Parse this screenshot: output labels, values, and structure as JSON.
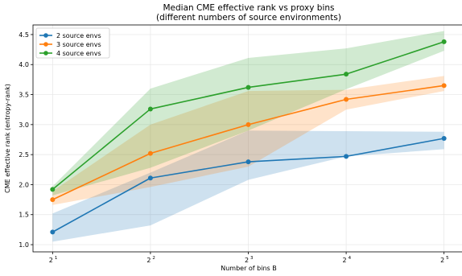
{
  "chart_data": {
    "type": "line",
    "title": "Median CME effective rank vs proxy bins",
    "subtitle": "(different numbers of source environments)",
    "xlabel": "Number of bins B",
    "ylabel": "CME effective rank (entropy-rank)",
    "x": [
      1,
      2,
      3,
      4,
      5
    ],
    "x_tick_labels": [
      {
        "base": "2",
        "exp": "1"
      },
      {
        "base": "2",
        "exp": "2"
      },
      {
        "base": "2",
        "exp": "3"
      },
      {
        "base": "2",
        "exp": "4"
      },
      {
        "base": "2",
        "exp": "5"
      }
    ],
    "x_scale": "log2",
    "xlim": [
      0.8,
      5.2
    ],
    "ylim": [
      0.88,
      4.66
    ],
    "y_ticks": [
      1.0,
      1.5,
      2.0,
      2.5,
      3.0,
      3.5,
      4.0,
      4.5
    ],
    "y_tick_labels": [
      "1.0",
      "1.5",
      "2.0",
      "2.5",
      "3.0",
      "3.5",
      "4.0",
      "4.5"
    ],
    "grid": true,
    "legend_position": "top-left",
    "series": [
      {
        "name": "2 source envs",
        "color": "#1f77b4",
        "values": [
          1.21,
          2.11,
          2.38,
          2.47,
          2.77
        ],
        "band_low": [
          1.05,
          1.32,
          2.08,
          2.47,
          2.59
        ],
        "band_high": [
          1.52,
          2.2,
          2.9,
          2.89,
          2.88
        ]
      },
      {
        "name": "3 source envs",
        "color": "#ff7f0e",
        "values": [
          1.75,
          2.52,
          3.0,
          3.42,
          3.65
        ],
        "band_low": [
          1.66,
          1.96,
          2.3,
          3.25,
          3.56
        ],
        "band_high": [
          1.89,
          3.0,
          3.56,
          3.58,
          3.81
        ]
      },
      {
        "name": "4 source envs",
        "color": "#2ca02c",
        "values": [
          1.92,
          3.26,
          3.62,
          3.84,
          4.38
        ],
        "band_low": [
          1.82,
          2.28,
          2.9,
          3.59,
          4.23
        ],
        "band_high": [
          1.97,
          3.6,
          4.11,
          4.27,
          4.56
        ]
      }
    ]
  }
}
